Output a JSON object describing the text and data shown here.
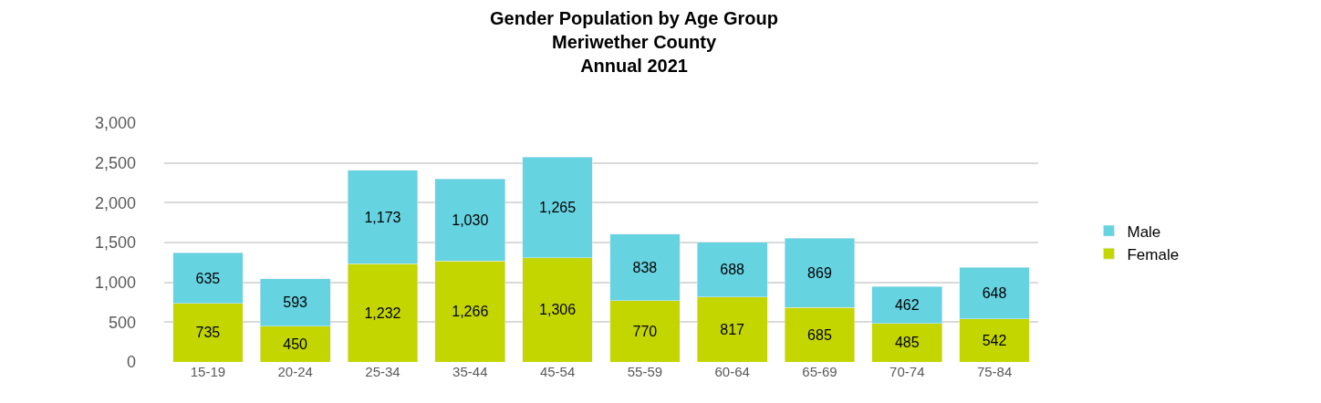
{
  "chart_data": {
    "type": "bar",
    "title": "Gender Population by Age Group\nMeriwether County\nAnnual 2021",
    "categories": [
      "15-19",
      "20-24",
      "25-34",
      "35-44",
      "45-54",
      "55-59",
      "60-64",
      "65-69",
      "70-74",
      "75-84"
    ],
    "series": [
      {
        "name": "Female",
        "color": "#c4d600",
        "values": [
          735,
          450,
          1232,
          1266,
          1306,
          770,
          817,
          685,
          485,
          542
        ],
        "value_labels": [
          "735",
          "450",
          "1,232",
          "1,266",
          "1,306",
          "770",
          "817",
          "685",
          "485",
          "542"
        ]
      },
      {
        "name": "Male",
        "color": "#66d3e0",
        "values": [
          635,
          593,
          1173,
          1030,
          1265,
          838,
          688,
          869,
          462,
          648
        ],
        "value_labels": [
          "635",
          "593",
          "1,173",
          "1,030",
          "1,265",
          "838",
          "688",
          "869",
          "462",
          "648"
        ]
      }
    ],
    "stacked": true,
    "ylim": [
      0,
      3000
    ],
    "yticks": [
      {
        "value": 0,
        "label": "0"
      },
      {
        "value": 500,
        "label": "500"
      },
      {
        "value": 1000,
        "label": "1,000"
      },
      {
        "value": 1500,
        "label": "1,500"
      },
      {
        "value": 2000,
        "label": "2,000"
      },
      {
        "value": 2500,
        "label": "2,500"
      },
      {
        "value": 3000,
        "label": "3,000"
      }
    ],
    "grid": "y",
    "legend": "right"
  }
}
